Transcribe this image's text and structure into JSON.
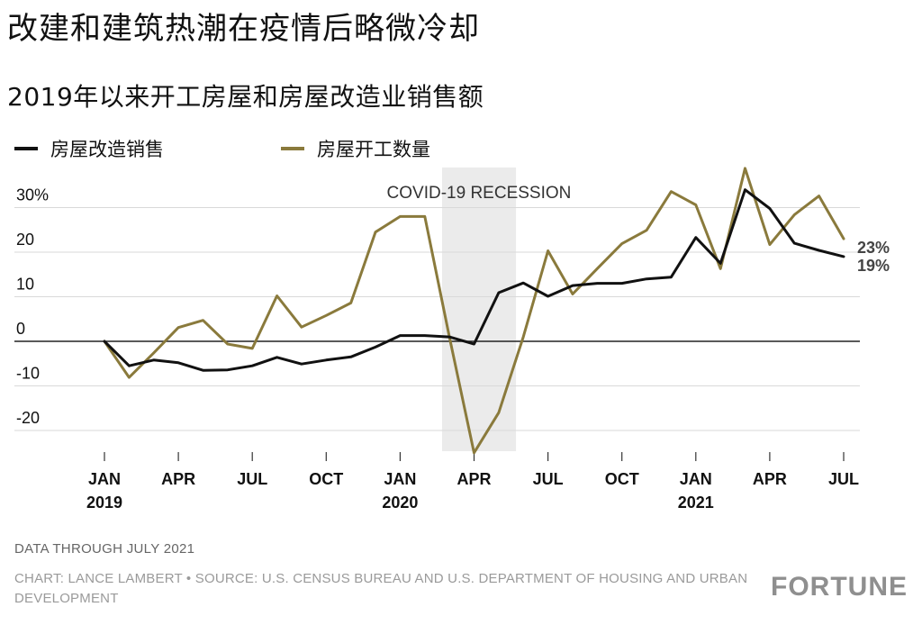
{
  "title": "改建和建筑热潮在疫情后略微冷却",
  "subtitle": "2019年以来开工房屋和房屋改造业销售额",
  "legend": [
    {
      "label": "房屋改造销售",
      "color": "#111111"
    },
    {
      "label": "房屋开工数量",
      "color": "#8a7a3c"
    }
  ],
  "footer": {
    "note": "DATA THROUGH JULY 2021",
    "credit": "CHART: LANCE LAMBERT • SOURCE: U.S. CENSUS BUREAU AND U.S. DEPARTMENT OF HOUSING AND URBAN DEVELOPMENT",
    "brand": "FORTUNE"
  },
  "chart_data": {
    "type": "line",
    "title": "2019年以来开工房屋和房屋改造业销售额",
    "x": [
      "2019-01",
      "2019-02",
      "2019-03",
      "2019-04",
      "2019-05",
      "2019-06",
      "2019-07",
      "2019-08",
      "2019-09",
      "2019-10",
      "2019-11",
      "2019-12",
      "2020-01",
      "2020-02",
      "2020-03",
      "2020-04",
      "2020-05",
      "2020-06",
      "2020-07",
      "2020-08",
      "2020-09",
      "2020-10",
      "2020-11",
      "2020-12",
      "2021-01",
      "2021-02",
      "2021-03",
      "2021-04",
      "2021-05",
      "2021-06",
      "2021-07"
    ],
    "series": [
      {
        "name": "房屋改造销售",
        "color": "#111111",
        "values": [
          0,
          -5.5,
          -4.2,
          -4.8,
          -6.5,
          -6.4,
          -5.5,
          -3.6,
          -5.1,
          -4.2,
          -3.5,
          -1.3,
          1.3,
          1.3,
          1.0,
          -0.6,
          10.9,
          13.1,
          10.1,
          12.5,
          13.0,
          13.0,
          14.0,
          14.4,
          23.3,
          17.5,
          34.0,
          29.8,
          22.0,
          20.4,
          19.0
        ]
      },
      {
        "name": "房屋开工数量",
        "color": "#8a7a3c",
        "values": [
          0,
          -8.1,
          -2.6,
          3.1,
          4.7,
          -0.6,
          -1.6,
          10.2,
          3.2,
          5.8,
          8.6,
          24.5,
          28.0,
          28.0,
          1.0,
          -25.0,
          -16.0,
          1.0,
          20.3,
          10.6,
          16.3,
          21.9,
          24.9,
          33.6,
          30.6,
          16.3,
          38.8,
          21.7,
          28.4,
          32.6,
          23.0
        ]
      }
    ],
    "x_ticks": [
      {
        "index": 0,
        "label": "JAN",
        "year": "2019"
      },
      {
        "index": 3,
        "label": "APR",
        "year": ""
      },
      {
        "index": 6,
        "label": "JUL",
        "year": ""
      },
      {
        "index": 9,
        "label": "OCT",
        "year": ""
      },
      {
        "index": 12,
        "label": "JAN",
        "year": "2020"
      },
      {
        "index": 15,
        "label": "APR",
        "year": ""
      },
      {
        "index": 18,
        "label": "JUL",
        "year": ""
      },
      {
        "index": 21,
        "label": "OCT",
        "year": ""
      },
      {
        "index": 24,
        "label": "JAN",
        "year": "2021"
      },
      {
        "index": 27,
        "label": "APR",
        "year": ""
      },
      {
        "index": 30,
        "label": "JUL",
        "year": ""
      }
    ],
    "y_ticks": [
      {
        "value": 30,
        "label": "30%"
      },
      {
        "value": 20,
        "label": "20"
      },
      {
        "value": 10,
        "label": "10"
      },
      {
        "value": 0,
        "label": "0"
      },
      {
        "value": -10,
        "label": "-10"
      },
      {
        "value": -20,
        "label": "-20"
      }
    ],
    "ylim": [
      -25,
      30
    ],
    "end_labels": [
      {
        "series": "房屋开工数量",
        "label": "23%"
      },
      {
        "series": "房屋改造销售",
        "label": "19%"
      }
    ],
    "recession": {
      "label": "COVID-19 RECESSION",
      "start_index": 13.7,
      "end_index": 16.7
    }
  }
}
